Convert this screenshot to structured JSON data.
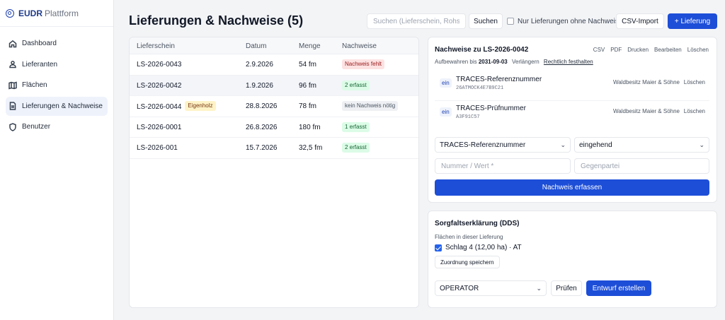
{
  "brand": {
    "name": "EUDR",
    "sub": "Plattform"
  },
  "nav": [
    {
      "label": "Dashboard",
      "icon": "home-icon"
    },
    {
      "label": "Lieferanten",
      "icon": "users-icon"
    },
    {
      "label": "Flächen",
      "icon": "map-icon"
    },
    {
      "label": "Lieferungen & Nachweise",
      "icon": "document-icon",
      "active": true
    },
    {
      "label": "Benutzer",
      "icon": "shield-icon"
    }
  ],
  "header": {
    "title": "Lieferungen & Nachweise (5)",
    "search_placeholder": "Suchen (Lieferschein, Rohstoff…)",
    "search_button": "Suchen",
    "filter_label": "Nur Lieferungen ohne Nachweis",
    "csv_import": "CSV-Import",
    "add_button": "+ Lieferung"
  },
  "table": {
    "columns": [
      "Lieferschein",
      "Datum",
      "Menge",
      "Nachweise"
    ],
    "rows": [
      {
        "id": "LS-2026-0043",
        "tag": "",
        "date": "2.9.2026",
        "qty": "54 fm",
        "status": "Nachweis fehlt",
        "status_kind": "red"
      },
      {
        "id": "LS-2026-0042",
        "tag": "",
        "date": "1.9.2026",
        "qty": "96 fm",
        "status": "2 erfasst",
        "status_kind": "green",
        "selected": true
      },
      {
        "id": "LS-2026-0044",
        "tag": "Eigenholz",
        "date": "28.8.2026",
        "qty": "78 fm",
        "status": "kein Nachweis nötig",
        "status_kind": "gray"
      },
      {
        "id": "LS-2026-0001",
        "tag": "",
        "date": "26.8.2026",
        "qty": "180 fm",
        "status": "1 erfasst",
        "status_kind": "green"
      },
      {
        "id": "LS-2026-001",
        "tag": "",
        "date": "15.7.2026",
        "qty": "32,5 fm",
        "status": "2 erfasst",
        "status_kind": "green"
      }
    ]
  },
  "proofs": {
    "title": "Nachweise zu LS-2026-0042",
    "actions": [
      "CSV",
      "PDF",
      "Drucken",
      "Bearbeiten",
      "Löschen"
    ],
    "retention_prefix": "Aufbewahren bis",
    "retention_date": "2031-09-03",
    "extend": "Verlängern",
    "legal_hold": "Rechtlich festhalten",
    "items": [
      {
        "dir": "ein",
        "type": "TRACES-Referenznummer",
        "value": "26ATMOCK4E7B9C21",
        "party": "Waldbesitz Maier & Söhne",
        "delete": "Löschen"
      },
      {
        "dir": "ein",
        "type": "TRACES-Prüfnummer",
        "value": "A3F91C57",
        "party": "Waldbesitz Maier & Söhne",
        "delete": "Löschen"
      }
    ],
    "form": {
      "type_select": "TRACES-Referenznummer",
      "direction_select": "eingehend",
      "value_placeholder": "Nummer / Wert *",
      "party_placeholder": "Gegenpartei",
      "submit": "Nachweis erfassen"
    }
  },
  "dds": {
    "title": "Sorgfaltserklärung (DDS)",
    "sub": "Flächen in dieser Lieferung",
    "plot_label": "Schlag 4 (12,00 ha) · AT",
    "save_button": "Zuordnung speichern",
    "role_select": "OPERATOR",
    "check_button": "Prüfen",
    "draft_button": "Entwurf erstellen"
  },
  "colors": {
    "primary": "#1d4ed8",
    "red_badge": "#fde2e2",
    "green_badge": "#dcfce7",
    "yellow_badge": "#fef3c7"
  }
}
